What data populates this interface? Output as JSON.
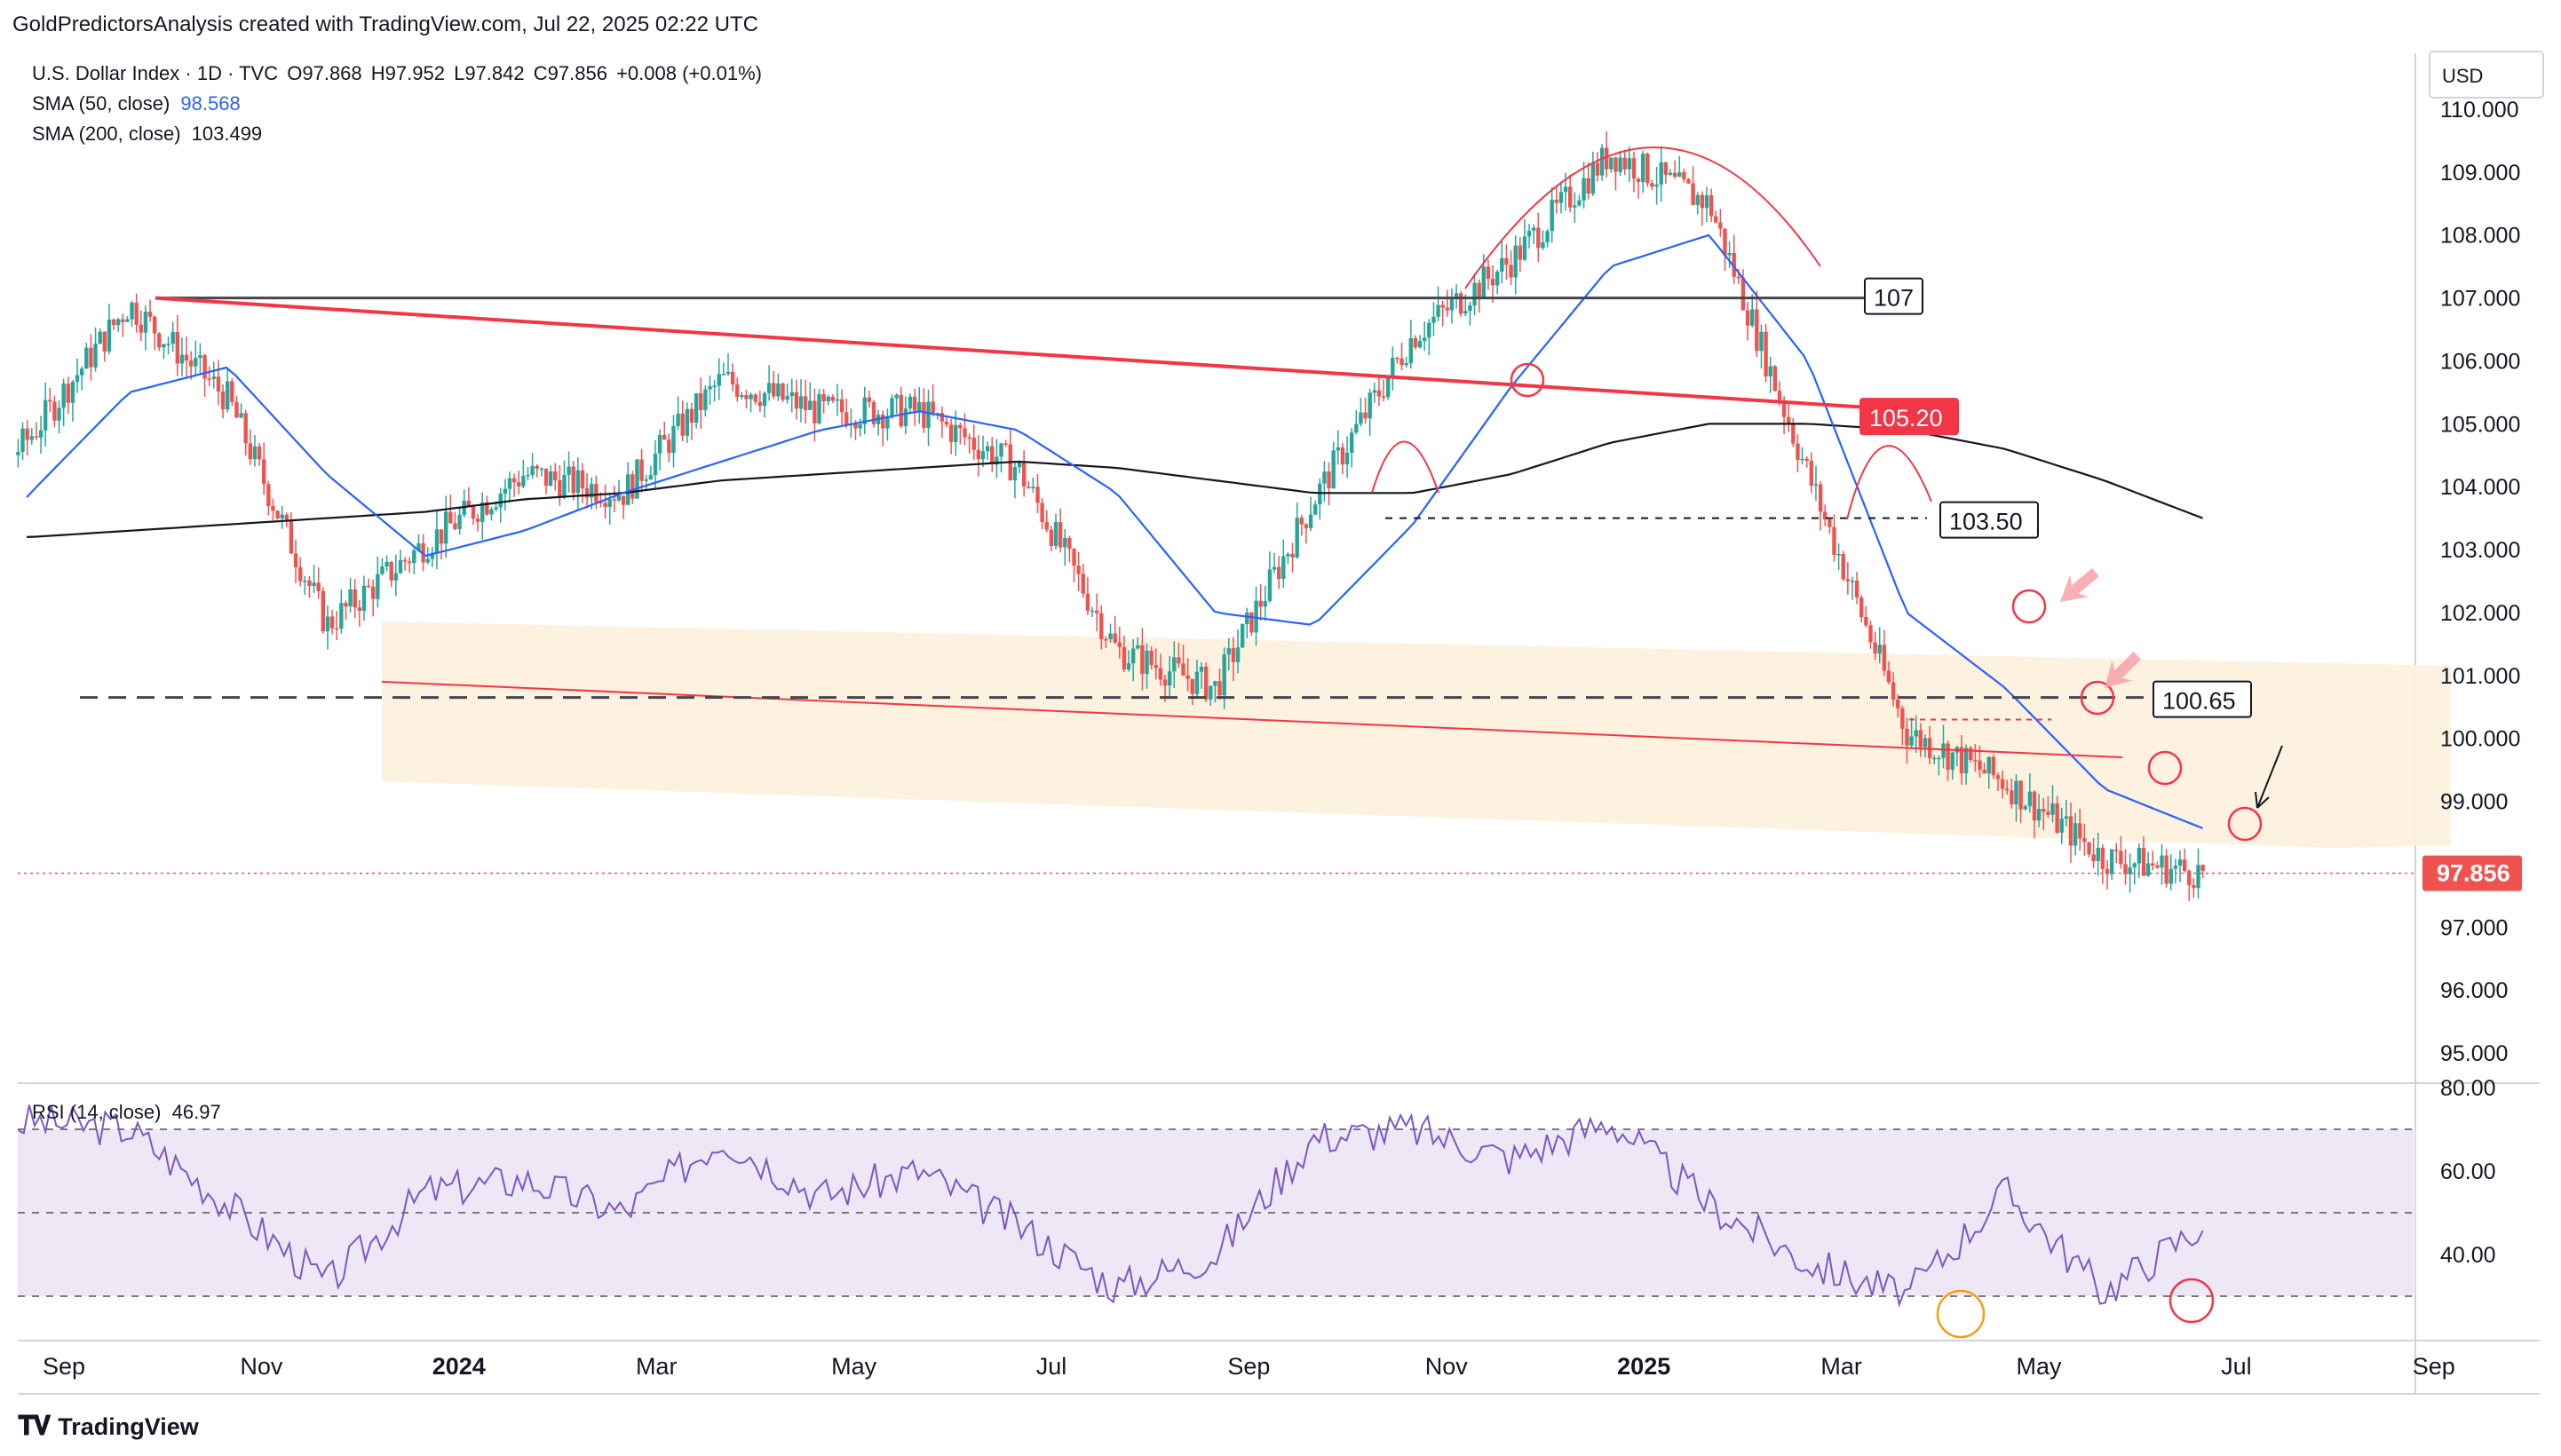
{
  "header": {
    "attribution": "GoldPredictorsAnalysis created with TradingView.com, Jul 22, 2025 02:22 UTC"
  },
  "legend": {
    "symbol": "U.S. Dollar Index · 1D · TVC",
    "open": "O97.868",
    "high": "H97.952",
    "low": "L97.842",
    "close": "C97.856",
    "change": "+0.008 (+0.01%)",
    "sma50_label": "SMA (50, close)",
    "sma50_value": "98.568",
    "sma200_label": "SMA (200, close)",
    "sma200_value": "103.499",
    "rsi_label": "RSI (14, close)",
    "rsi_value": "46.97"
  },
  "currency": "USD",
  "branding": "TradingView",
  "colors": {
    "bull": "#26a69a",
    "bear": "#ef5350",
    "sma50": "#2962ff",
    "sma200": "#131722",
    "trendline": "#f23645",
    "rsi": "#7e57c2",
    "channel_fill": "#fdf0dc",
    "rsi_band": "#ede7f6",
    "text": "#131722",
    "change_positive": "#089981"
  },
  "chart_data": [
    {
      "type": "candlestick",
      "title": "U.S. Dollar Index · 1D · TVC",
      "x_axis_labels": [
        "Sep",
        "Nov",
        "2024",
        "Mar",
        "May",
        "Jul",
        "Sep",
        "Nov",
        "2025",
        "Mar",
        "May",
        "Jul",
        "Sep"
      ],
      "y_axis_labels": [
        "95.000",
        "96.000",
        "97.000",
        "98.000",
        "99.000",
        "100.000",
        "101.000",
        "102.000",
        "103.000",
        "104.000",
        "105.000",
        "106.000",
        "107.000",
        "108.000",
        "109.000",
        "110.000"
      ],
      "ylim": [
        94.5,
        110.1
      ],
      "last_price": "97.856",
      "series": [
        {
          "name": "U.S. Dollar Index",
          "x": [
            "Aug 2023",
            "Sep 2023",
            "Oct 2023",
            "Nov 2023",
            "Dec 2023",
            "Jan 2024",
            "Feb 2024",
            "Mar 2024",
            "Apr 2024",
            "May 2024",
            "Jun 2024",
            "Jul 2024",
            "Aug 2024",
            "Sep 2024",
            "Oct 2024",
            "Nov 2024",
            "Dec 2024",
            "Jan 2025",
            "Feb 2025",
            "Mar 2025",
            "Apr 2025",
            "May 2025",
            "Jun 2025",
            "Jul 2025"
          ],
          "values": [
            103.2,
            104.8,
            106.9,
            105.4,
            101.8,
            103.1,
            104.2,
            103.9,
            105.7,
            105.2,
            105.2,
            104.3,
            101.4,
            100.8,
            103.8,
            106.4,
            107.6,
            109.3,
            108.5,
            104.2,
            100.1,
            99.3,
            98.1,
            97.86
          ]
        },
        {
          "name": "SMA (50, close)",
          "x": [
            "Aug 2023",
            "Sep 2023",
            "Oct 2023",
            "Nov 2023",
            "Dec 2023",
            "Jan 2024",
            "Feb 2024",
            "Mar 2024",
            "Apr 2024",
            "May 2024",
            "Jun 2024",
            "Jul 2024",
            "Aug 2024",
            "Sep 2024",
            "Oct 2024",
            "Nov 2024",
            "Dec 2024",
            "Jan 2025",
            "Feb 2025",
            "Mar 2025",
            "Apr 2025",
            "May 2025",
            "Jun 2025",
            "Jul 2025"
          ],
          "values": [
            102.1,
            103.9,
            105.5,
            105.9,
            104.2,
            102.9,
            103.3,
            103.9,
            104.4,
            104.9,
            105.2,
            104.9,
            103.9,
            102.0,
            101.8,
            103.4,
            105.6,
            107.5,
            108.0,
            106.0,
            102.0,
            100.8,
            99.2,
            98.57
          ]
        },
        {
          "name": "SMA (200, close)",
          "x": [
            "Aug 2023",
            "Sep 2023",
            "Oct 2023",
            "Nov 2023",
            "Dec 2023",
            "Jan 2024",
            "Feb 2024",
            "Mar 2024",
            "Apr 2024",
            "May 2024",
            "Jun 2024",
            "Jul 2024",
            "Aug 2024",
            "Sep 2024",
            "Oct 2024",
            "Nov 2024",
            "Dec 2024",
            "Jan 2025",
            "Feb 2025",
            "Mar 2025",
            "Apr 2025",
            "May 2025",
            "Jun 2025",
            "Jul 2025"
          ],
          "values": [
            103.2,
            103.2,
            103.3,
            103.4,
            103.5,
            103.6,
            103.8,
            103.9,
            104.1,
            104.2,
            104.3,
            104.4,
            104.3,
            104.1,
            103.9,
            103.9,
            104.2,
            104.7,
            105.0,
            105.0,
            104.9,
            104.6,
            104.1,
            103.5
          ]
        }
      ],
      "annotations": [
        "107",
        "105.20",
        "103.50",
        "100.65"
      ]
    },
    {
      "type": "line",
      "title": "RSI (14, close)",
      "y_axis_labels": [
        "40.00",
        "60.00",
        "80.00"
      ],
      "ylim": [
        25,
        80
      ],
      "bands": [
        30,
        50,
        70
      ],
      "series": [
        {
          "name": "RSI (14, close)",
          "x": [
            "Aug 2023",
            "Sep 2023",
            "Oct 2023",
            "Nov 2023",
            "Dec 2023",
            "Jan 2024",
            "Feb 2024",
            "Mar 2024",
            "Apr 2024",
            "May 2024",
            "Jun 2024",
            "Jul 2024",
            "Aug 2024",
            "Sep 2024",
            "Oct 2024",
            "Nov 2024",
            "Dec 2024",
            "Jan 2025",
            "Feb 2025",
            "Mar 2025",
            "Apr 2025",
            "May 2025",
            "Jun 2025",
            "Jul 2025"
          ],
          "values": [
            66,
            72,
            70,
            52,
            33,
            55,
            58,
            50,
            68,
            54,
            60,
            47,
            32,
            40,
            68,
            70,
            63,
            72,
            52,
            38,
            30,
            55,
            31,
            46.97
          ]
        }
      ]
    }
  ]
}
